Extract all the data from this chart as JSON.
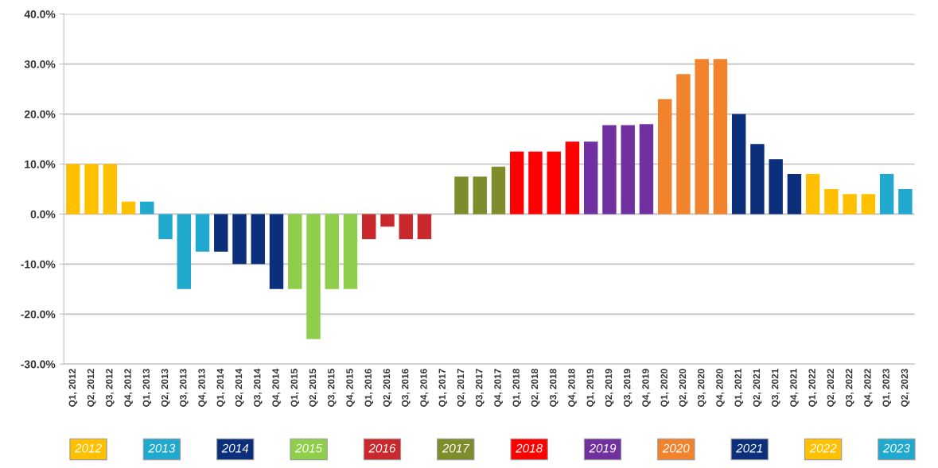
{
  "chart_data": {
    "type": "bar",
    "categories": [
      "Q1, 2012",
      "Q2, 2012",
      "Q3, 2012",
      "Q4, 2012",
      "Q1, 2013",
      "Q2, 2013",
      "Q3, 2013",
      "Q4, 2013",
      "Q1, 2014",
      "Q2, 2014",
      "Q3, 2014",
      "Q4, 2014",
      "Q1, 2015",
      "Q2, 2015",
      "Q3, 2015",
      "Q4, 2015",
      "Q1, 2016",
      "Q2, 2016",
      "Q3, 2016",
      "Q4, 2016",
      "Q1, 2017",
      "Q2, 2017",
      "Q3, 2017",
      "Q4, 2017",
      "Q1, 2018",
      "Q2, 2018",
      "Q3, 2018",
      "Q4, 2018",
      "Q1, 2019",
      "Q2, 2019",
      "Q3, 2019",
      "Q4, 2019",
      "Q1, 2020",
      "Q2, 2020",
      "Q3, 2020",
      "Q4, 2020",
      "Q1, 2021",
      "Q2, 2021",
      "Q3, 2021",
      "Q4, 2021",
      "Q1, 2022",
      "Q2, 2022",
      "Q3, 2022",
      "Q4, 2022",
      "Q1, 2023",
      "Q2, 2023"
    ],
    "series": [
      {
        "name": "2012",
        "color": "#ffc000",
        "values": [
          10,
          10,
          10,
          2.5,
          null,
          null,
          null,
          null,
          null,
          null,
          null,
          null,
          null,
          null,
          null,
          null,
          null,
          null,
          null,
          null,
          null,
          null,
          null,
          null,
          null,
          null,
          null,
          null,
          null,
          null,
          null,
          null,
          null,
          null,
          null,
          null,
          null,
          null,
          null,
          null,
          null,
          null,
          null,
          null,
          null,
          null
        ]
      },
      {
        "name": "2013",
        "color": "#1fa9cf",
        "values": [
          null,
          null,
          null,
          null,
          2.5,
          -5,
          -15,
          -7.5,
          null,
          null,
          null,
          null,
          null,
          null,
          null,
          null,
          null,
          null,
          null,
          null,
          null,
          null,
          null,
          null,
          null,
          null,
          null,
          null,
          null,
          null,
          null,
          null,
          null,
          null,
          null,
          null,
          null,
          null,
          null,
          null,
          null,
          null,
          null,
          null,
          null,
          null
        ]
      },
      {
        "name": "2014",
        "color": "#0b2f7a",
        "values": [
          null,
          null,
          null,
          null,
          null,
          null,
          null,
          null,
          -7.5,
          -10,
          -10,
          -15,
          null,
          null,
          null,
          null,
          null,
          null,
          null,
          null,
          null,
          null,
          null,
          null,
          null,
          null,
          null,
          null,
          null,
          null,
          null,
          null,
          null,
          null,
          null,
          null,
          null,
          null,
          null,
          null,
          null,
          null,
          null,
          null,
          null,
          null
        ]
      },
      {
        "name": "2015",
        "color": "#8fce4a",
        "values": [
          null,
          null,
          null,
          null,
          null,
          null,
          null,
          null,
          null,
          null,
          null,
          null,
          -15,
          -25,
          -15,
          -15,
          null,
          null,
          null,
          null,
          null,
          null,
          null,
          null,
          null,
          null,
          null,
          null,
          null,
          null,
          null,
          null,
          null,
          null,
          null,
          null,
          null,
          null,
          null,
          null,
          null,
          null,
          null,
          null,
          null,
          null
        ]
      },
      {
        "name": "2016",
        "color": "#c9282d",
        "values": [
          null,
          null,
          null,
          null,
          null,
          null,
          null,
          null,
          null,
          null,
          null,
          null,
          null,
          null,
          null,
          null,
          -5,
          -2.5,
          -5,
          -5,
          null,
          null,
          null,
          null,
          null,
          null,
          null,
          null,
          null,
          null,
          null,
          null,
          null,
          null,
          null,
          null,
          null,
          null,
          null,
          null,
          null,
          null,
          null,
          null,
          null,
          null
        ]
      },
      {
        "name": "2017",
        "color": "#7f8c2c",
        "values": [
          null,
          null,
          null,
          null,
          null,
          null,
          null,
          null,
          null,
          null,
          null,
          null,
          null,
          null,
          null,
          null,
          null,
          null,
          null,
          null,
          0,
          7.5,
          7.5,
          9.5,
          null,
          null,
          null,
          null,
          null,
          null,
          null,
          null,
          null,
          null,
          null,
          null,
          null,
          null,
          null,
          null,
          null,
          null,
          null,
          null,
          null,
          null
        ]
      },
      {
        "name": "2018",
        "color": "#ff0000",
        "values": [
          null,
          null,
          null,
          null,
          null,
          null,
          null,
          null,
          null,
          null,
          null,
          null,
          null,
          null,
          null,
          null,
          null,
          null,
          null,
          null,
          null,
          null,
          null,
          null,
          12.5,
          12.5,
          12.5,
          14.5,
          null,
          null,
          null,
          null,
          null,
          null,
          null,
          null,
          null,
          null,
          null,
          null,
          null,
          null,
          null,
          null,
          null,
          null
        ]
      },
      {
        "name": "2019",
        "color": "#7030a0",
        "values": [
          null,
          null,
          null,
          null,
          null,
          null,
          null,
          null,
          null,
          null,
          null,
          null,
          null,
          null,
          null,
          null,
          null,
          null,
          null,
          null,
          null,
          null,
          null,
          null,
          null,
          null,
          null,
          null,
          14.5,
          17.8,
          17.8,
          18,
          null,
          null,
          null,
          null,
          null,
          null,
          null,
          null,
          null,
          null,
          null,
          null,
          null,
          null
        ]
      },
      {
        "name": "2020",
        "color": "#f0832c",
        "values": [
          null,
          null,
          null,
          null,
          null,
          null,
          null,
          null,
          null,
          null,
          null,
          null,
          null,
          null,
          null,
          null,
          null,
          null,
          null,
          null,
          null,
          null,
          null,
          null,
          null,
          null,
          null,
          null,
          null,
          null,
          null,
          null,
          23,
          28,
          31,
          31,
          null,
          null,
          null,
          null,
          null,
          null,
          null,
          null,
          null,
          null
        ]
      },
      {
        "name": "2021",
        "color": "#0b2f7a",
        "values": [
          null,
          null,
          null,
          null,
          null,
          null,
          null,
          null,
          null,
          null,
          null,
          null,
          null,
          null,
          null,
          null,
          null,
          null,
          null,
          null,
          null,
          null,
          null,
          null,
          null,
          null,
          null,
          null,
          null,
          null,
          null,
          null,
          null,
          null,
          null,
          null,
          20,
          14,
          11,
          8,
          null,
          null,
          null,
          null,
          null,
          null
        ]
      },
      {
        "name": "2022",
        "color": "#ffc000",
        "values": [
          null,
          null,
          null,
          null,
          null,
          null,
          null,
          null,
          null,
          null,
          null,
          null,
          null,
          null,
          null,
          null,
          null,
          null,
          null,
          null,
          null,
          null,
          null,
          null,
          null,
          null,
          null,
          null,
          null,
          null,
          null,
          null,
          null,
          null,
          null,
          null,
          null,
          null,
          null,
          null,
          8,
          5,
          4,
          4,
          null,
          null
        ]
      },
      {
        "name": "2023",
        "color": "#1fa9cf",
        "values": [
          null,
          null,
          null,
          null,
          null,
          null,
          null,
          null,
          null,
          null,
          null,
          null,
          null,
          null,
          null,
          null,
          null,
          null,
          null,
          null,
          null,
          null,
          null,
          null,
          null,
          null,
          null,
          null,
          null,
          null,
          null,
          null,
          null,
          null,
          null,
          null,
          null,
          null,
          null,
          null,
          null,
          null,
          null,
          null,
          8,
          5
        ]
      }
    ],
    "ylim": [
      -30,
      40
    ],
    "yticks": [
      {
        "value": -30,
        "label": "-30.0%"
      },
      {
        "value": -20,
        "label": "-20.0%"
      },
      {
        "value": -10,
        "label": "-10.0%"
      },
      {
        "value": 0,
        "label": "0.0%"
      },
      {
        "value": 10,
        "label": "10.0%"
      },
      {
        "value": 20,
        "label": "20.0%"
      },
      {
        "value": 30,
        "label": "30.0%"
      },
      {
        "value": 40,
        "label": "40.0%"
      }
    ],
    "grid": "y",
    "legend": "bottom"
  }
}
